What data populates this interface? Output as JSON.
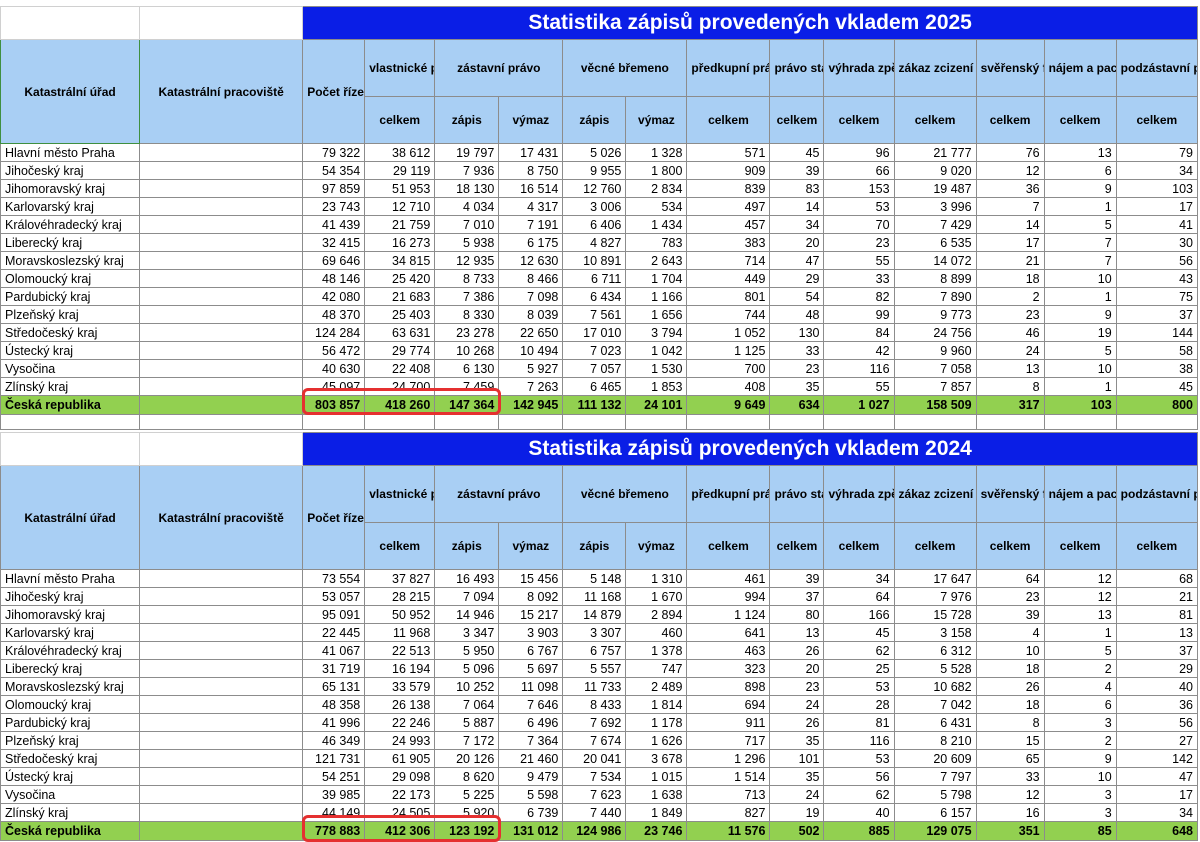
{
  "header": {
    "col_urad": "Katastrální úřad",
    "col_pracoviste": "Katastrální pracoviště",
    "col_pocet": "Počet řízení",
    "col_vlastnicke": "vlastnické právo",
    "col_zastavni": "zástavní právo",
    "col_vecne": "věcné břemeno",
    "col_predkupni": "předkupní právo",
    "col_stavby": "právo stavby",
    "col_vyhrada": "výhrada zpětné koupě",
    "col_zakaz": "zákaz zcizení nebo zatížení",
    "col_sverensky": "svěřenský fond",
    "col_najem": "nájem a pacht",
    "col_podzastavni": "podzástavní právo",
    "sub_celkem": "celkem",
    "sub_zapis": "zápis",
    "sub_vymaz": "výmaz"
  },
  "tables": [
    {
      "title": "Statistika zápisů provedených vkladem 2025",
      "rows": [
        [
          "Hlavní město Praha",
          "79 322",
          "38 612",
          "19 797",
          "17 431",
          "5 026",
          "1 328",
          "571",
          "45",
          "96",
          "21 777",
          "76",
          "13",
          "79"
        ],
        [
          "Jihočeský kraj",
          "54 354",
          "29 119",
          "7 936",
          "8 750",
          "9 955",
          "1 800",
          "909",
          "39",
          "66",
          "9 020",
          "12",
          "6",
          "34"
        ],
        [
          "Jihomoravský kraj",
          "97 859",
          "51 953",
          "18 130",
          "16 514",
          "12 760",
          "2 834",
          "839",
          "83",
          "153",
          "19 487",
          "36",
          "9",
          "103"
        ],
        [
          "Karlovarský kraj",
          "23 743",
          "12 710",
          "4 034",
          "4 317",
          "3 006",
          "534",
          "497",
          "14",
          "53",
          "3 996",
          "7",
          "1",
          "17"
        ],
        [
          "Královéhradecký kraj",
          "41 439",
          "21 759",
          "7 010",
          "7 191",
          "6 406",
          "1 434",
          "457",
          "34",
          "70",
          "7 429",
          "14",
          "5",
          "41"
        ],
        [
          "Liberecký kraj",
          "32 415",
          "16 273",
          "5 938",
          "6 175",
          "4 827",
          "783",
          "383",
          "20",
          "23",
          "6 535",
          "17",
          "7",
          "30"
        ],
        [
          "Moravskoslezský kraj",
          "69 646",
          "34 815",
          "12 935",
          "12 630",
          "10 891",
          "2 643",
          "714",
          "47",
          "55",
          "14 072",
          "21",
          "7",
          "56"
        ],
        [
          "Olomoucký kraj",
          "48 146",
          "25 420",
          "8 733",
          "8 466",
          "6 711",
          "1 704",
          "449",
          "29",
          "33",
          "8 899",
          "18",
          "10",
          "43"
        ],
        [
          "Pardubický kraj",
          "42 080",
          "21 683",
          "7 386",
          "7 098",
          "6 434",
          "1 166",
          "801",
          "54",
          "82",
          "7 890",
          "2",
          "1",
          "75"
        ],
        [
          "Plzeňský kraj",
          "48 370",
          "25 403",
          "8 330",
          "8 039",
          "7 561",
          "1 656",
          "744",
          "48",
          "99",
          "9 773",
          "23",
          "9",
          "37"
        ],
        [
          "Středočeský kraj",
          "124 284",
          "63 631",
          "23 278",
          "22 650",
          "17 010",
          "3 794",
          "1 052",
          "130",
          "84",
          "24 756",
          "46",
          "19",
          "144"
        ],
        [
          "Ústecký kraj",
          "56 472",
          "29 774",
          "10 268",
          "10 494",
          "7 023",
          "1 042",
          "1 125",
          "33",
          "42",
          "9 960",
          "24",
          "5",
          "58"
        ],
        [
          "Vysočina",
          "40 630",
          "22 408",
          "6 130",
          "5 927",
          "7 057",
          "1 530",
          "700",
          "23",
          "116",
          "7 058",
          "13",
          "10",
          "38"
        ],
        [
          "Zlínský kraj",
          "45 097",
          "24 700",
          "7 459",
          "7 263",
          "6 465",
          "1 853",
          "408",
          "35",
          "55",
          "7 857",
          "8",
          "1",
          "45"
        ]
      ],
      "total": [
        "Česká republika",
        "803 857",
        "418 260",
        "147 364",
        "142 945",
        "111 132",
        "24 101",
        "9 649",
        "634",
        "1 027",
        "158 509",
        "317",
        "103",
        "800"
      ]
    },
    {
      "title": "Statistika zápisů provedených vkladem 2024",
      "rows": [
        [
          "Hlavní město Praha",
          "73 554",
          "37 827",
          "16 493",
          "15 456",
          "5 148",
          "1 310",
          "461",
          "39",
          "34",
          "17 647",
          "64",
          "12",
          "68"
        ],
        [
          "Jihočeský kraj",
          "53 057",
          "28 215",
          "7 094",
          "8 092",
          "11 168",
          "1 670",
          "994",
          "37",
          "64",
          "7 976",
          "23",
          "12",
          "21"
        ],
        [
          "Jihomoravský kraj",
          "95 091",
          "50 952",
          "14 946",
          "15 217",
          "14 879",
          "2 894",
          "1 124",
          "80",
          "166",
          "15 728",
          "39",
          "13",
          "81"
        ],
        [
          "Karlovarský kraj",
          "22 445",
          "11 968",
          "3 347",
          "3 903",
          "3 307",
          "460",
          "641",
          "13",
          "45",
          "3 158",
          "4",
          "1",
          "13"
        ],
        [
          "Královéhradecký kraj",
          "41 067",
          "22 513",
          "5 950",
          "6 767",
          "6 757",
          "1 378",
          "463",
          "26",
          "62",
          "6 312",
          "10",
          "5",
          "37"
        ],
        [
          "Liberecký kraj",
          "31 719",
          "16 194",
          "5 096",
          "5 697",
          "5 557",
          "747",
          "323",
          "20",
          "25",
          "5 528",
          "18",
          "2",
          "29"
        ],
        [
          "Moravskoslezský kraj",
          "65 131",
          "33 579",
          "10 252",
          "11 098",
          "11 733",
          "2 489",
          "898",
          "23",
          "53",
          "10 682",
          "26",
          "4",
          "40"
        ],
        [
          "Olomoucký kraj",
          "48 358",
          "26 138",
          "7 064",
          "7 646",
          "8 433",
          "1 814",
          "694",
          "24",
          "28",
          "7 042",
          "18",
          "6",
          "36"
        ],
        [
          "Pardubický kraj",
          "41 996",
          "22 246",
          "5 887",
          "6 496",
          "7 692",
          "1 178",
          "911",
          "26",
          "81",
          "6 431",
          "8",
          "3",
          "56"
        ],
        [
          "Plzeňský kraj",
          "46 349",
          "24 993",
          "7 172",
          "7 364",
          "7 674",
          "1 626",
          "717",
          "35",
          "116",
          "8 210",
          "15",
          "2",
          "27"
        ],
        [
          "Středočeský kraj",
          "121 731",
          "61 905",
          "20 126",
          "21 460",
          "20 041",
          "3 678",
          "1 296",
          "101",
          "53",
          "20 609",
          "65",
          "9",
          "142"
        ],
        [
          "Ústecký kraj",
          "54 251",
          "29 098",
          "8 620",
          "9 479",
          "7 534",
          "1 015",
          "1 514",
          "35",
          "56",
          "7 797",
          "33",
          "10",
          "47"
        ],
        [
          "Vysočina",
          "39 985",
          "22 173",
          "5 225",
          "5 598",
          "7 623",
          "1 638",
          "713",
          "24",
          "62",
          "5 798",
          "12",
          "3",
          "17"
        ],
        [
          "Zlínský kraj",
          "44 149",
          "24 505",
          "5 920",
          "6 739",
          "7 440",
          "1 849",
          "827",
          "19",
          "40",
          "6 157",
          "16",
          "3",
          "34"
        ]
      ],
      "total": [
        "Česká republika",
        "778 883",
        "412 306",
        "123 192",
        "131 012",
        "124 986",
        "23 746",
        "11 576",
        "502",
        "885",
        "129 075",
        "351",
        "85",
        "648"
      ]
    }
  ]
}
